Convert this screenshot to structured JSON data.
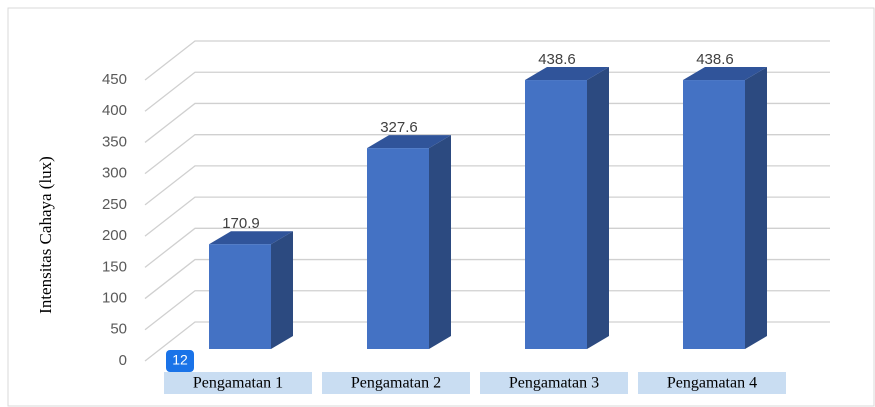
{
  "chart_data": {
    "type": "bar3d",
    "y_axis_label": "Intensitas Cahaya (lux)",
    "categories": [
      "Pengamatan 1",
      "Pengamatan 2",
      "Pengamatan 3",
      "Pengamatan 4"
    ],
    "values": [
      170.9,
      327.6,
      438.6,
      438.6
    ],
    "color": "#4472c4",
    "ylim": [
      0,
      450
    ],
    "yticks": [
      0,
      50,
      100,
      150,
      200,
      250,
      300,
      350,
      400,
      450
    ],
    "grid": true,
    "badge": "12"
  }
}
